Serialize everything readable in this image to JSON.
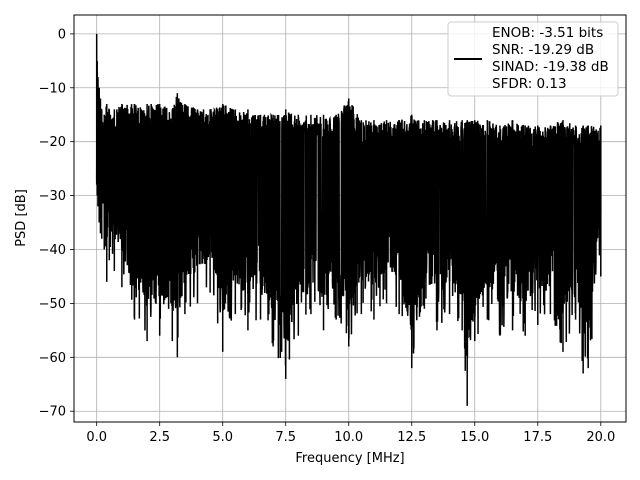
{
  "chart_data": {
    "type": "line",
    "title": "",
    "xlabel": "Frequency [MHz]",
    "ylabel": "PSD [dB]",
    "xlim": [
      -0.9,
      21.0
    ],
    "ylim": [
      -72,
      3.5
    ],
    "xticks": [
      0.0,
      2.5,
      5.0,
      7.5,
      10.0,
      12.5,
      15.0,
      17.5,
      20.0
    ],
    "xtick_labels": [
      "0.0",
      "2.5",
      "5.0",
      "7.5",
      "10.0",
      "12.5",
      "15.0",
      "17.5",
      "20.0"
    ],
    "yticks": [
      0,
      -10,
      -20,
      -30,
      -40,
      -50,
      -60,
      -70
    ],
    "ytick_labels": [
      "0",
      "−10",
      "−20",
      "−30",
      "−40",
      "−50",
      "−60",
      "−70"
    ],
    "grid": true,
    "legend_position": "top-right",
    "legend_entries": [
      "ENOB: -3.51 bits",
      "SNR: -19.29 dB",
      "SINAD: -19.38 dB",
      "SFDR: 0.13"
    ],
    "series_color": "#000000",
    "band": {
      "x_start": 0.0,
      "x_end": 20.0,
      "typical_top": -16,
      "typical_bottom": -41,
      "note_peaks_from_figure": true
    },
    "series": [
      {
        "x": [
          0.0,
          0.02,
          0.05,
          0.1,
          0.15,
          0.2,
          0.3,
          0.4,
          0.5,
          0.7,
          1.0,
          1.5,
          2.0,
          2.5,
          3.0,
          3.2,
          3.5,
          4.0,
          4.5,
          5.0,
          5.5,
          6.0,
          6.5,
          7.0,
          7.5,
          8.0,
          8.5,
          9.0,
          9.5,
          10.0,
          10.5,
          11.0,
          11.5,
          12.0,
          12.5,
          13.0,
          13.5,
          14.0,
          14.5,
          14.7,
          15.0,
          15.5,
          16.0,
          16.5,
          17.0,
          17.5,
          18.0,
          18.5,
          19.0,
          19.3,
          19.5,
          20.0
        ],
        "y_top": [
          0,
          -5,
          -8,
          -10,
          -12,
          -14,
          -15,
          -13,
          -14,
          -14,
          -13,
          -13,
          -13,
          -13,
          -14,
          -11,
          -13,
          -14,
          -14,
          -13,
          -14,
          -14,
          -15,
          -15,
          -14,
          -15,
          -15,
          -15,
          -15,
          -12,
          -16,
          -16,
          -16,
          -16,
          -15,
          -16,
          -16,
          -16,
          -16,
          -16,
          -16,
          -16,
          -17,
          -16,
          -17,
          -17,
          -17,
          -16,
          -17,
          -17,
          -17,
          -17
        ],
        "y_bottom": [
          -28,
          -30,
          -32,
          -35,
          -37,
          -38,
          -40,
          -46,
          -42,
          -44,
          -47,
          -53,
          -57,
          -56,
          -57,
          -60,
          -52,
          -50,
          -48,
          -59,
          -52,
          -55,
          -53,
          -58,
          -64,
          -56,
          -52,
          -55,
          -53,
          -58,
          -52,
          -53,
          -50,
          -52,
          -62,
          -51,
          -55,
          -52,
          -55,
          -69,
          -57,
          -53,
          -56,
          -55,
          -56,
          -54,
          -52,
          -59,
          -53,
          -63,
          -62,
          -45
        ]
      }
    ]
  }
}
